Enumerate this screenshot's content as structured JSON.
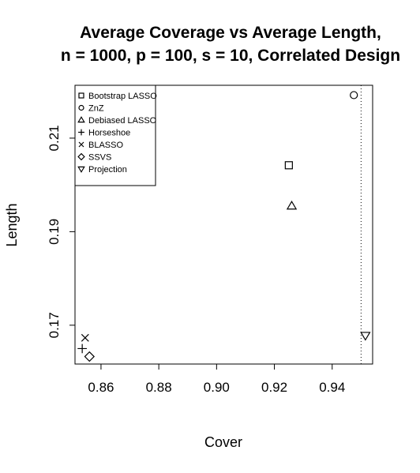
{
  "chart_data": {
    "type": "scatter",
    "title_lines": [
      "Average Coverage vs Average Length,",
      "n = 1000, p = 100, s = 10, Correlated Design"
    ],
    "xlabel": "Cover",
    "ylabel": "Length",
    "xlim": [
      0.851,
      0.954
    ],
    "ylim": [
      0.1617,
      0.2213
    ],
    "x_ticks": [
      0.86,
      0.88,
      0.9,
      0.92,
      0.94
    ],
    "x_tick_labels": [
      "0.86",
      "0.88",
      "0.90",
      "0.92",
      "0.94"
    ],
    "y_ticks": [
      0.17,
      0.19,
      0.21
    ],
    "y_tick_labels": [
      "0.17",
      "0.19",
      "0.21"
    ],
    "reference_line": {
      "x": 0.95,
      "style": "dotted"
    },
    "grid": false,
    "legend_position": "top-left",
    "series": [
      {
        "name": "Bootstrap LASSO",
        "marker": "square",
        "x": 0.925,
        "y": 0.2042
      },
      {
        "name": "ZnZ",
        "marker": "circle",
        "x": 0.9475,
        "y": 0.2192
      },
      {
        "name": "Debiased LASSO",
        "marker": "triangle-up",
        "x": 0.926,
        "y": 0.1955
      },
      {
        "name": "Horseshoe",
        "marker": "plus",
        "x": 0.8535,
        "y": 0.165
      },
      {
        "name": "BLASSO",
        "marker": "cross",
        "x": 0.8545,
        "y": 0.1673
      },
      {
        "name": "SSVS",
        "marker": "diamond",
        "x": 0.856,
        "y": 0.1633
      },
      {
        "name": "Projection",
        "marker": "triangle-down",
        "x": 0.9515,
        "y": 0.1678
      }
    ]
  }
}
